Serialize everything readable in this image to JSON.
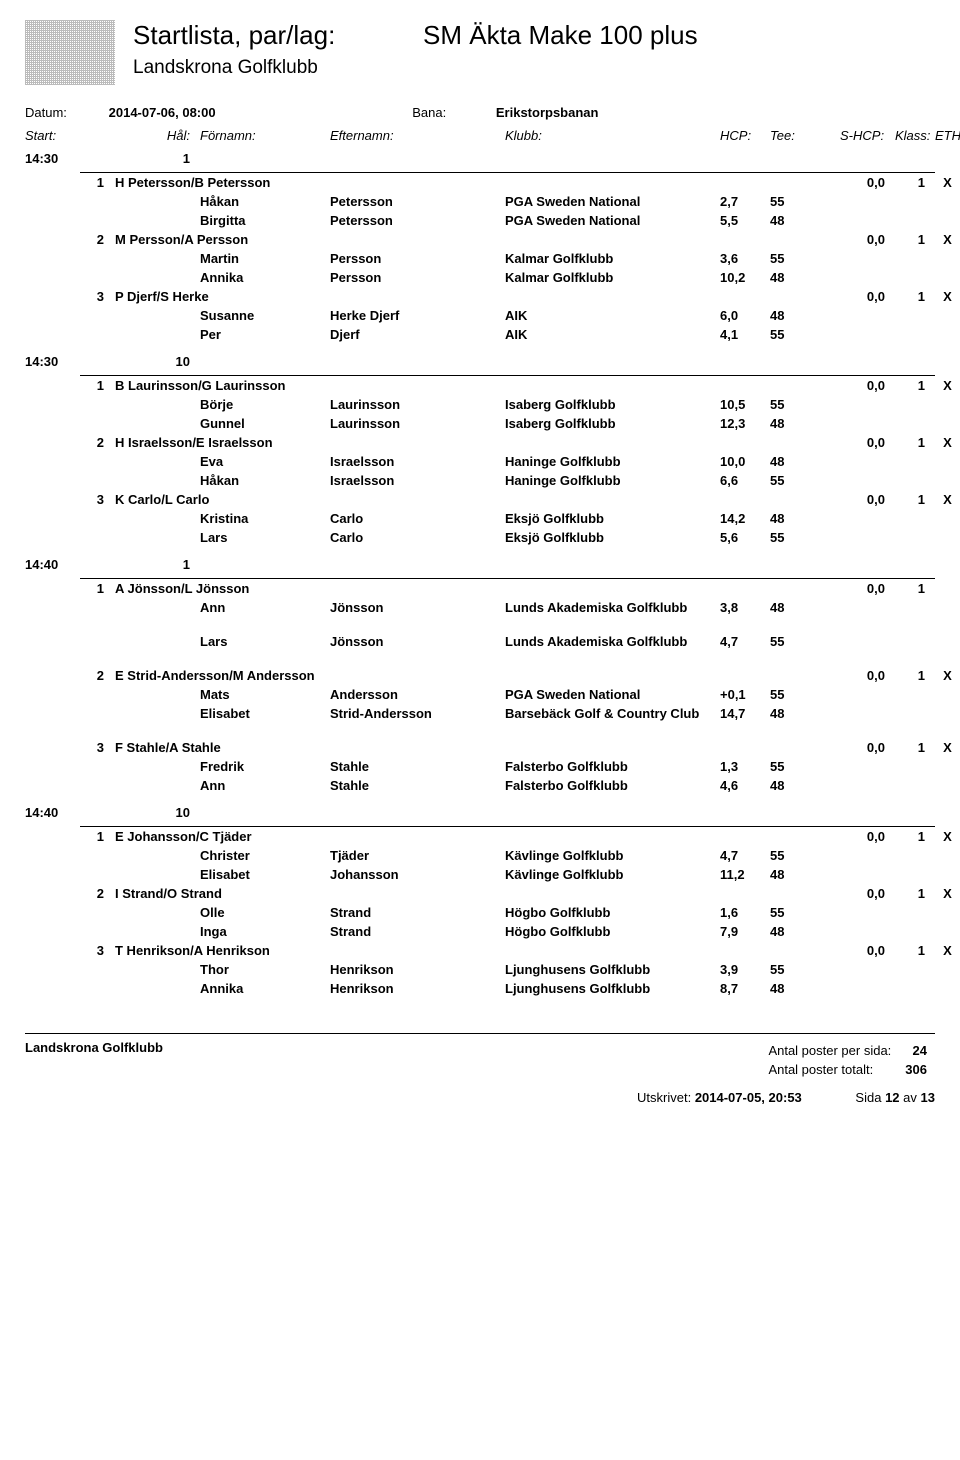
{
  "header": {
    "title1": "Startlista, par/lag:",
    "title2": "SM Äkta Make 100 plus",
    "subtitle": "Landskrona Golfklubb"
  },
  "meta": {
    "datum_lbl": "Datum:",
    "datum_val": "2014-07-06, 08:00",
    "bana_lbl": "Bana:",
    "bana_val": "Erikstorpsbanan"
  },
  "columns": {
    "start": "Start:",
    "hal": "Hål:",
    "fornamn": "Förnamn:",
    "efternamn": "Efternamn:",
    "klubb": "Klubb:",
    "hcp": "HCP:",
    "tee": "Tee:",
    "shcp": "S-HCP:",
    "klass": "Klass:",
    "eth": "ETH"
  },
  "groups": [
    {
      "time": "14:30",
      "hole": "1",
      "teams": [
        {
          "n": "1",
          "name": "H Petersson/B Petersson",
          "shcp": "0,0",
          "klass": "1",
          "eth": "X",
          "players": [
            {
              "f": "Håkan",
              "l": "Petersson",
              "k": "PGA Sweden National",
              "h": "2,7",
              "t": "55"
            },
            {
              "f": "Birgitta",
              "l": "Petersson",
              "k": "PGA Sweden National",
              "h": "5,5",
              "t": "48"
            }
          ]
        },
        {
          "n": "2",
          "name": "M Persson/A Persson",
          "shcp": "0,0",
          "klass": "1",
          "eth": "X",
          "players": [
            {
              "f": "Martin",
              "l": "Persson",
              "k": "Kalmar Golfklubb",
              "h": "3,6",
              "t": "55"
            },
            {
              "f": "Annika",
              "l": "Persson",
              "k": "Kalmar Golfklubb",
              "h": "10,2",
              "t": "48"
            }
          ]
        },
        {
          "n": "3",
          "name": "P Djerf/S Herke",
          "shcp": "0,0",
          "klass": "1",
          "eth": "X",
          "players": [
            {
              "f": "Susanne",
              "l": "Herke Djerf",
              "k": "AIK",
              "h": "6,0",
              "t": "48"
            },
            {
              "f": "Per",
              "l": "Djerf",
              "k": "AIK",
              "h": "4,1",
              "t": "55"
            }
          ]
        }
      ]
    },
    {
      "time": "14:30",
      "hole": "10",
      "teams": [
        {
          "n": "1",
          "name": "B Laurinsson/G Laurinsson",
          "shcp": "0,0",
          "klass": "1",
          "eth": "X",
          "players": [
            {
              "f": "Börje",
              "l": "Laurinsson",
              "k": "Isaberg Golfklubb",
              "h": "10,5",
              "t": "55"
            },
            {
              "f": "Gunnel",
              "l": "Laurinsson",
              "k": "Isaberg Golfklubb",
              "h": "12,3",
              "t": "48"
            }
          ]
        },
        {
          "n": "2",
          "name": "H Israelsson/E Israelsson",
          "shcp": "0,0",
          "klass": "1",
          "eth": "X",
          "players": [
            {
              "f": "Eva",
              "l": "Israelsson",
              "k": "Haninge Golfklubb",
              "h": "10,0",
              "t": "48"
            },
            {
              "f": "Håkan",
              "l": "Israelsson",
              "k": "Haninge Golfklubb",
              "h": "6,6",
              "t": "55"
            }
          ]
        },
        {
          "n": "3",
          "name": "K Carlo/L Carlo",
          "shcp": "0,0",
          "klass": "1",
          "eth": "X",
          "players": [
            {
              "f": "Kristina",
              "l": "Carlo",
              "k": "Eksjö Golfklubb",
              "h": "14,2",
              "t": "48"
            },
            {
              "f": "Lars",
              "l": "Carlo",
              "k": "Eksjö Golfklubb",
              "h": "5,6",
              "t": "55"
            }
          ]
        }
      ]
    },
    {
      "time": "14:40",
      "hole": "1",
      "teams": [
        {
          "n": "1",
          "name": "A Jönsson/L Jönsson",
          "shcp": "0,0",
          "klass": "1",
          "eth": "",
          "players": [
            {
              "f": "Ann",
              "l": "Jönsson",
              "k": "Lunds Akademiska Golfklubb",
              "h": "3,8",
              "t": "48",
              "tall": true
            },
            {
              "f": "Lars",
              "l": "Jönsson",
              "k": "Lunds Akademiska Golfklubb",
              "h": "4,7",
              "t": "55",
              "tall": true
            }
          ]
        },
        {
          "n": "2",
          "name": "E Strid-Andersson/M Andersson",
          "shcp": "0,0",
          "klass": "1",
          "eth": "X",
          "players": [
            {
              "f": "Mats",
              "l": "Andersson",
              "k": "PGA Sweden National",
              "h": "+0,1",
              "t": "55"
            },
            {
              "f": "Elisabet",
              "l": "Strid-Andersson",
              "k": "Barsebäck Golf & Country Club",
              "h": "14,7",
              "t": "48",
              "tall": true
            }
          ]
        },
        {
          "n": "3",
          "name": "F Stahle/A Stahle",
          "shcp": "0,0",
          "klass": "1",
          "eth": "X",
          "players": [
            {
              "f": "Fredrik",
              "l": "Stahle",
              "k": "Falsterbo Golfklubb",
              "h": "1,3",
              "t": "55"
            },
            {
              "f": "Ann",
              "l": "Stahle",
              "k": "Falsterbo Golfklubb",
              "h": "4,6",
              "t": "48"
            }
          ]
        }
      ]
    },
    {
      "time": "14:40",
      "hole": "10",
      "teams": [
        {
          "n": "1",
          "name": "E Johansson/C Tjäder",
          "shcp": "0,0",
          "klass": "1",
          "eth": "X",
          "players": [
            {
              "f": "Christer",
              "l": "Tjäder",
              "k": "Kävlinge Golfklubb",
              "h": "4,7",
              "t": "55"
            },
            {
              "f": "Elisabet",
              "l": "Johansson",
              "k": "Kävlinge Golfklubb",
              "h": "11,2",
              "t": "48"
            }
          ]
        },
        {
          "n": "2",
          "name": "I Strand/O Strand",
          "shcp": "0,0",
          "klass": "1",
          "eth": "X",
          "players": [
            {
              "f": "Olle",
              "l": "Strand",
              "k": "Högbo Golfklubb",
              "h": "1,6",
              "t": "55"
            },
            {
              "f": "Inga",
              "l": "Strand",
              "k": "Högbo Golfklubb",
              "h": "7,9",
              "t": "48"
            }
          ]
        },
        {
          "n": "3",
          "name": "T Henrikson/A Henrikson",
          "shcp": "0,0",
          "klass": "1",
          "eth": "X",
          "players": [
            {
              "f": "Thor",
              "l": "Henrikson",
              "k": "Ljunghusens Golfklubb",
              "h": "3,9",
              "t": "55"
            },
            {
              "f": "Annika",
              "l": "Henrikson",
              "k": "Ljunghusens Golfklubb",
              "h": "8,7",
              "t": "48"
            }
          ]
        }
      ]
    }
  ],
  "footer": {
    "club": "Landskrona Golfklubb",
    "perpage_lbl": "Antal poster per sida:",
    "perpage_val": "24",
    "total_lbl": "Antal poster totalt:",
    "total_val": "306",
    "printed_lbl": "Utskrivet:",
    "printed_val": "2014-07-05, 20:53",
    "page_lbl": "Sida",
    "page_cur": "12",
    "page_sep": "av",
    "page_tot": "13"
  }
}
